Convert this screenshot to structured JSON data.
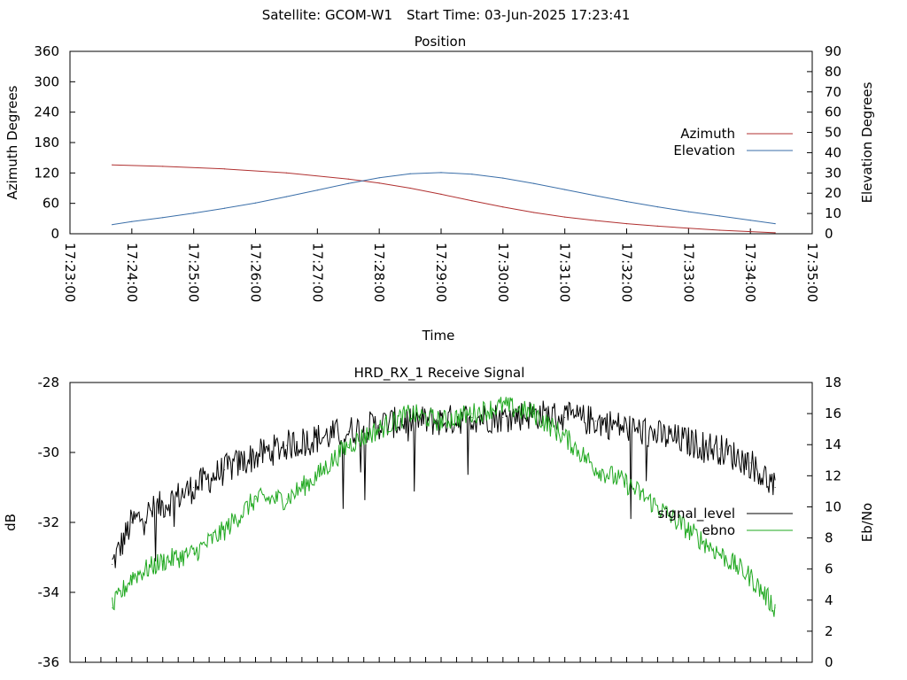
{
  "header": {
    "satellite_label": "Satellite: GCOM-W1",
    "start_time_label": "Start Time: 03-Jun-2025 17:23:41"
  },
  "chart_data": [
    {
      "type": "line",
      "title": "Position",
      "xlabel": "Time",
      "ylabel": "Azimuth Degrees",
      "y2label": "Elevation Degrees",
      "xlim": [
        "17:23:00",
        "17:35:00"
      ],
      "ylim": [
        0,
        360
      ],
      "y2lim": [
        0,
        90
      ],
      "xticks": [
        "17:23:00",
        "17:24:00",
        "17:25:00",
        "17:26:00",
        "17:27:00",
        "17:28:00",
        "17:29:00",
        "17:30:00",
        "17:31:00",
        "17:32:00",
        "17:33:00",
        "17:34:00",
        "17:35:00"
      ],
      "yticks": [
        0,
        60,
        120,
        180,
        240,
        300,
        360
      ],
      "y2ticks": [
        0,
        10,
        20,
        30,
        40,
        50,
        60,
        70,
        80,
        90
      ],
      "legend_position": "right",
      "grid": false,
      "series": [
        {
          "name": "Azimuth",
          "axis": "y",
          "color": "#b03030",
          "x": [
            "17:23:41",
            "17:24:30",
            "17:25:30",
            "17:26:30",
            "17:27:30",
            "17:28:00",
            "17:28:30",
            "17:29:00",
            "17:29:30",
            "17:30:00",
            "17:30:30",
            "17:31:00",
            "17:31:30",
            "17:32:00",
            "17:32:30",
            "17:33:00",
            "17:33:30",
            "17:34:24"
          ],
          "values": [
            136,
            133,
            128,
            120,
            108,
            100,
            90,
            78,
            65,
            53,
            42,
            33,
            26,
            20,
            15,
            11,
            7,
            2
          ]
        },
        {
          "name": "Elevation",
          "axis": "y2",
          "color": "#3a6ea8",
          "x": [
            "17:23:41",
            "17:24:00",
            "17:24:30",
            "17:25:00",
            "17:25:30",
            "17:26:00",
            "17:26:30",
            "17:27:00",
            "17:27:30",
            "17:28:00",
            "17:28:30",
            "17:29:00",
            "17:29:30",
            "17:30:00",
            "17:30:30",
            "17:31:00",
            "17:31:30",
            "17:32:00",
            "17:32:30",
            "17:33:00",
            "17:33:30",
            "17:34:00",
            "17:34:24"
          ],
          "values": [
            4.5,
            6,
            8,
            10.2,
            12.6,
            15.2,
            18.3,
            21.5,
            24.8,
            27.6,
            29.6,
            30.2,
            29.4,
            27.5,
            24.8,
            21.8,
            18.8,
            15.9,
            13.3,
            10.9,
            8.8,
            6.7,
            5
          ]
        }
      ]
    },
    {
      "type": "line",
      "title": "HRD_RX_1 Receive Signal",
      "ylabel": "dB",
      "y2label": "Eb/No",
      "ylim": [
        -36,
        -28
      ],
      "y2lim": [
        0,
        18
      ],
      "yticks": [
        "-36",
        "-34",
        "-32",
        "-30",
        "-28"
      ],
      "y2ticks": [
        0,
        2,
        4,
        6,
        8,
        10,
        12,
        14,
        16,
        18
      ],
      "xlim": [
        "17:23:00",
        "17:35:00"
      ],
      "legend_position": "right",
      "grid": false,
      "series": [
        {
          "name": "signal_level",
          "axis": "y",
          "color": "#000000",
          "x": [
            "17:23:41",
            "17:24:00",
            "17:24:30",
            "17:25:00",
            "17:25:30",
            "17:26:00",
            "17:26:30",
            "17:27:00",
            "17:27:30",
            "17:28:00",
            "17:28:30",
            "17:29:00",
            "17:29:30",
            "17:30:00",
            "17:30:30",
            "17:31:00",
            "17:31:30",
            "17:32:00",
            "17:32:30",
            "17:33:00",
            "17:33:30",
            "17:34:00",
            "17:34:24"
          ],
          "values": [
            -33.2,
            -32.0,
            -31.5,
            -31.0,
            -30.5,
            -30.1,
            -29.8,
            -29.6,
            -29.4,
            -29.2,
            -29.1,
            -29.1,
            -29.0,
            -29.0,
            -28.9,
            -29.0,
            -29.1,
            -29.3,
            -29.5,
            -29.7,
            -29.9,
            -30.3,
            -31.0
          ]
        },
        {
          "name": "ebno",
          "axis": "y2",
          "color": "#1fa81f",
          "x": [
            "17:23:41",
            "17:24:00",
            "17:24:30",
            "17:25:00",
            "17:25:30",
            "17:26:00",
            "17:26:30",
            "17:27:00",
            "17:27:30",
            "17:28:00",
            "17:28:30",
            "17:29:00",
            "17:29:30",
            "17:30:00",
            "17:30:30",
            "17:31:00",
            "17:31:30",
            "17:32:00",
            "17:32:30",
            "17:33:00",
            "17:33:30",
            "17:34:00",
            "17:34:24"
          ],
          "values": [
            3.5,
            5.5,
            6.5,
            7.0,
            8.5,
            10.5,
            10.5,
            12.0,
            14.0,
            15.0,
            16.0,
            15.5,
            16.0,
            16.5,
            16.0,
            14.5,
            12.5,
            11.5,
            10.0,
            8.5,
            7.0,
            5.5,
            3.5
          ]
        }
      ]
    }
  ]
}
